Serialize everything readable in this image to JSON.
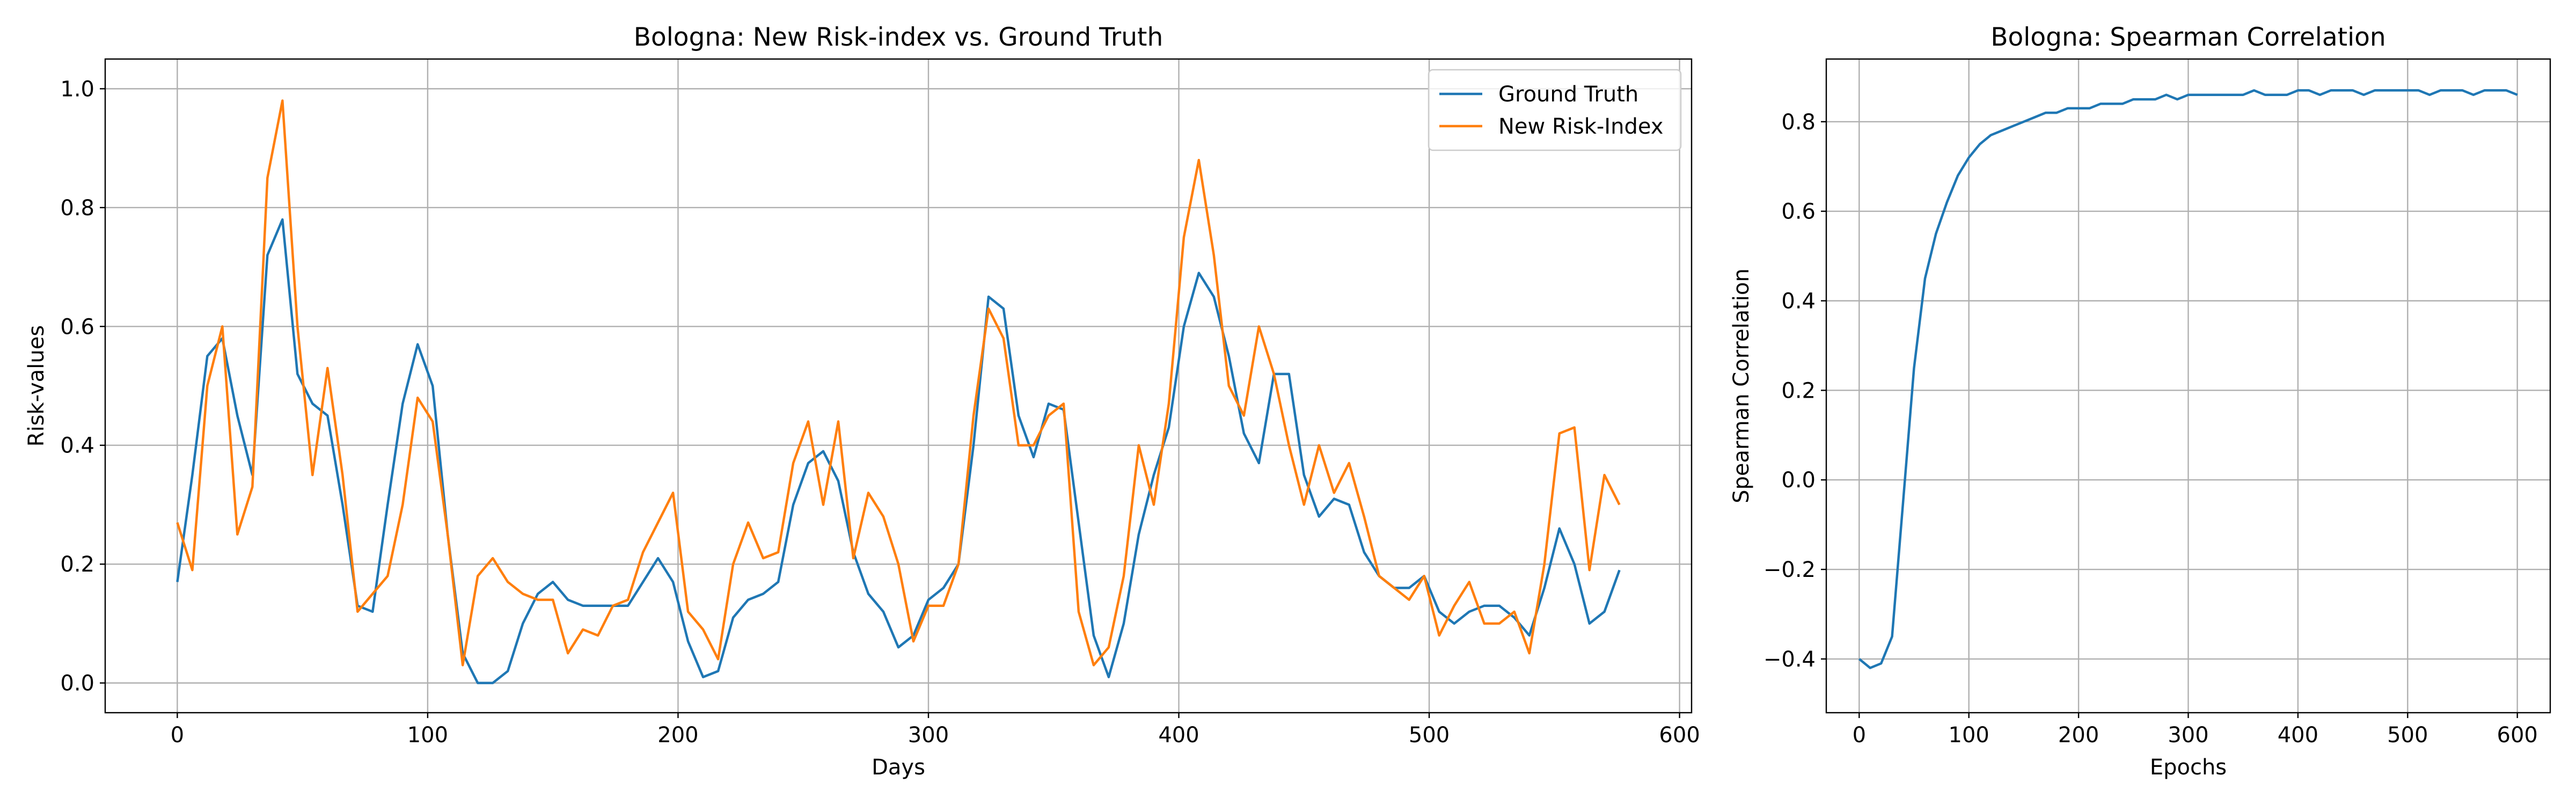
{
  "chart_data": [
    {
      "type": "line",
      "title": "Bologna: New Risk-index vs. Ground Truth",
      "xlabel": "Days",
      "ylabel": "Risk-values",
      "x": [
        0,
        6,
        12,
        18,
        24,
        30,
        36,
        42,
        48,
        54,
        60,
        66,
        72,
        78,
        84,
        90,
        96,
        102,
        108,
        114,
        120,
        126,
        132,
        138,
        144,
        150,
        156,
        162,
        168,
        174,
        180,
        186,
        192,
        198,
        204,
        210,
        216,
        222,
        228,
        234,
        240,
        246,
        252,
        258,
        264,
        270,
        276,
        282,
        288,
        294,
        300,
        306,
        312,
        318,
        324,
        330,
        336,
        342,
        348,
        354,
        360,
        366,
        372,
        378,
        384,
        390,
        396,
        402,
        408,
        414,
        420,
        426,
        432,
        438,
        444,
        450,
        456,
        462,
        468,
        474,
        480,
        486,
        492,
        498,
        504,
        510,
        516,
        522,
        528,
        534,
        540,
        546,
        552,
        558,
        564,
        570,
        576
      ],
      "series": [
        {
          "name": "Ground Truth",
          "color": "#1f77b4",
          "values": [
            0.17,
            0.35,
            0.55,
            0.58,
            0.45,
            0.35,
            0.72,
            0.78,
            0.52,
            0.47,
            0.45,
            0.3,
            0.13,
            0.12,
            0.3,
            0.47,
            0.57,
            0.5,
            0.25,
            0.05,
            0.0,
            0.0,
            0.02,
            0.1,
            0.15,
            0.17,
            0.14,
            0.13,
            0.13,
            0.13,
            0.13,
            0.17,
            0.21,
            0.17,
            0.07,
            0.01,
            0.02,
            0.11,
            0.14,
            0.15,
            0.17,
            0.3,
            0.37,
            0.39,
            0.34,
            0.22,
            0.15,
            0.12,
            0.06,
            0.08,
            0.14,
            0.16,
            0.2,
            0.4,
            0.65,
            0.63,
            0.45,
            0.38,
            0.47,
            0.46,
            0.27,
            0.08,
            0.01,
            0.1,
            0.25,
            0.35,
            0.43,
            0.6,
            0.69,
            0.65,
            0.55,
            0.42,
            0.37,
            0.52,
            0.52,
            0.35,
            0.28,
            0.31,
            0.3,
            0.22,
            0.18,
            0.16,
            0.16,
            0.18,
            0.12,
            0.1,
            0.12,
            0.13,
            0.13,
            0.11,
            0.08,
            0.16,
            0.26,
            0.2,
            0.1,
            0.12,
            0.19
          ]
        },
        {
          "name": "New Risk-Index",
          "color": "#ff7f0e",
          "values": [
            0.27,
            0.19,
            0.5,
            0.6,
            0.25,
            0.33,
            0.85,
            0.98,
            0.6,
            0.35,
            0.53,
            0.35,
            0.12,
            0.15,
            0.18,
            0.3,
            0.48,
            0.44,
            0.25,
            0.03,
            0.18,
            0.21,
            0.17,
            0.15,
            0.14,
            0.14,
            0.05,
            0.09,
            0.08,
            0.13,
            0.14,
            0.22,
            0.27,
            0.32,
            0.12,
            0.09,
            0.04,
            0.2,
            0.27,
            0.21,
            0.22,
            0.37,
            0.44,
            0.3,
            0.44,
            0.21,
            0.32,
            0.28,
            0.2,
            0.07,
            0.13,
            0.13,
            0.2,
            0.45,
            0.63,
            0.58,
            0.4,
            0.4,
            0.45,
            0.47,
            0.12,
            0.03,
            0.06,
            0.18,
            0.4,
            0.3,
            0.47,
            0.75,
            0.88,
            0.72,
            0.5,
            0.45,
            0.6,
            0.52,
            0.4,
            0.3,
            0.4,
            0.32,
            0.37,
            0.28,
            0.18,
            0.16,
            0.14,
            0.18,
            0.08,
            0.13,
            0.17,
            0.1,
            0.1,
            0.12,
            0.05,
            0.2,
            0.42,
            0.43,
            0.19,
            0.35,
            0.3
          ]
        }
      ],
      "xlim": [
        -28.8,
        604.8
      ],
      "ylim": [
        -0.05,
        1.05
      ],
      "xticks": [
        0,
        100,
        200,
        300,
        400,
        500,
        600
      ],
      "yticks": [
        {
          "value": 0,
          "label": "0.0"
        },
        0.2,
        0.4,
        0.6,
        0.8,
        {
          "value": 1,
          "label": "1.0"
        }
      ],
      "grid": true,
      "legend": "upper right"
    },
    {
      "type": "line",
      "title": "Bologna: Spearman Correlation",
      "xlabel": "Epochs",
      "ylabel": "Spearman Correlation",
      "x": [
        0,
        10,
        20,
        30,
        40,
        50,
        60,
        70,
        80,
        90,
        100,
        110,
        120,
        130,
        140,
        150,
        160,
        170,
        180,
        190,
        200,
        210,
        220,
        230,
        240,
        250,
        260,
        270,
        280,
        290,
        300,
        310,
        320,
        330,
        340,
        350,
        360,
        370,
        380,
        390,
        400,
        410,
        420,
        430,
        440,
        450,
        460,
        470,
        480,
        490,
        500,
        510,
        520,
        530,
        540,
        550,
        560,
        570,
        580,
        590,
        600
      ],
      "series": [
        {
          "color": "#1f77b4",
          "values": [
            -0.4,
            -0.42,
            -0.41,
            -0.35,
            -0.05,
            0.25,
            0.45,
            0.55,
            0.62,
            0.68,
            0.72,
            0.75,
            0.77,
            0.78,
            0.79,
            0.8,
            0.81,
            0.82,
            0.82,
            0.83,
            0.83,
            0.83,
            0.84,
            0.84,
            0.84,
            0.85,
            0.85,
            0.85,
            0.86,
            0.85,
            0.86,
            0.86,
            0.86,
            0.86,
            0.86,
            0.86,
            0.87,
            0.86,
            0.86,
            0.86,
            0.87,
            0.87,
            0.86,
            0.87,
            0.87,
            0.87,
            0.86,
            0.87,
            0.87,
            0.87,
            0.87,
            0.87,
            0.86,
            0.87,
            0.87,
            0.87,
            0.86,
            0.87,
            0.87,
            0.87,
            0.86
          ]
        }
      ],
      "xlim": [
        -30,
        630
      ],
      "ylim": [
        -0.52,
        0.94
      ],
      "xticks": [
        0,
        100,
        200,
        300,
        400,
        500,
        600
      ],
      "yticks": [
        {
          "value": -0.4,
          "label": "−0.4"
        },
        {
          "value": -0.2,
          "label": "−0.2"
        },
        {
          "value": 0,
          "label": "0.0"
        },
        0.2,
        0.4,
        0.6,
        0.8
      ],
      "grid": true
    }
  ]
}
